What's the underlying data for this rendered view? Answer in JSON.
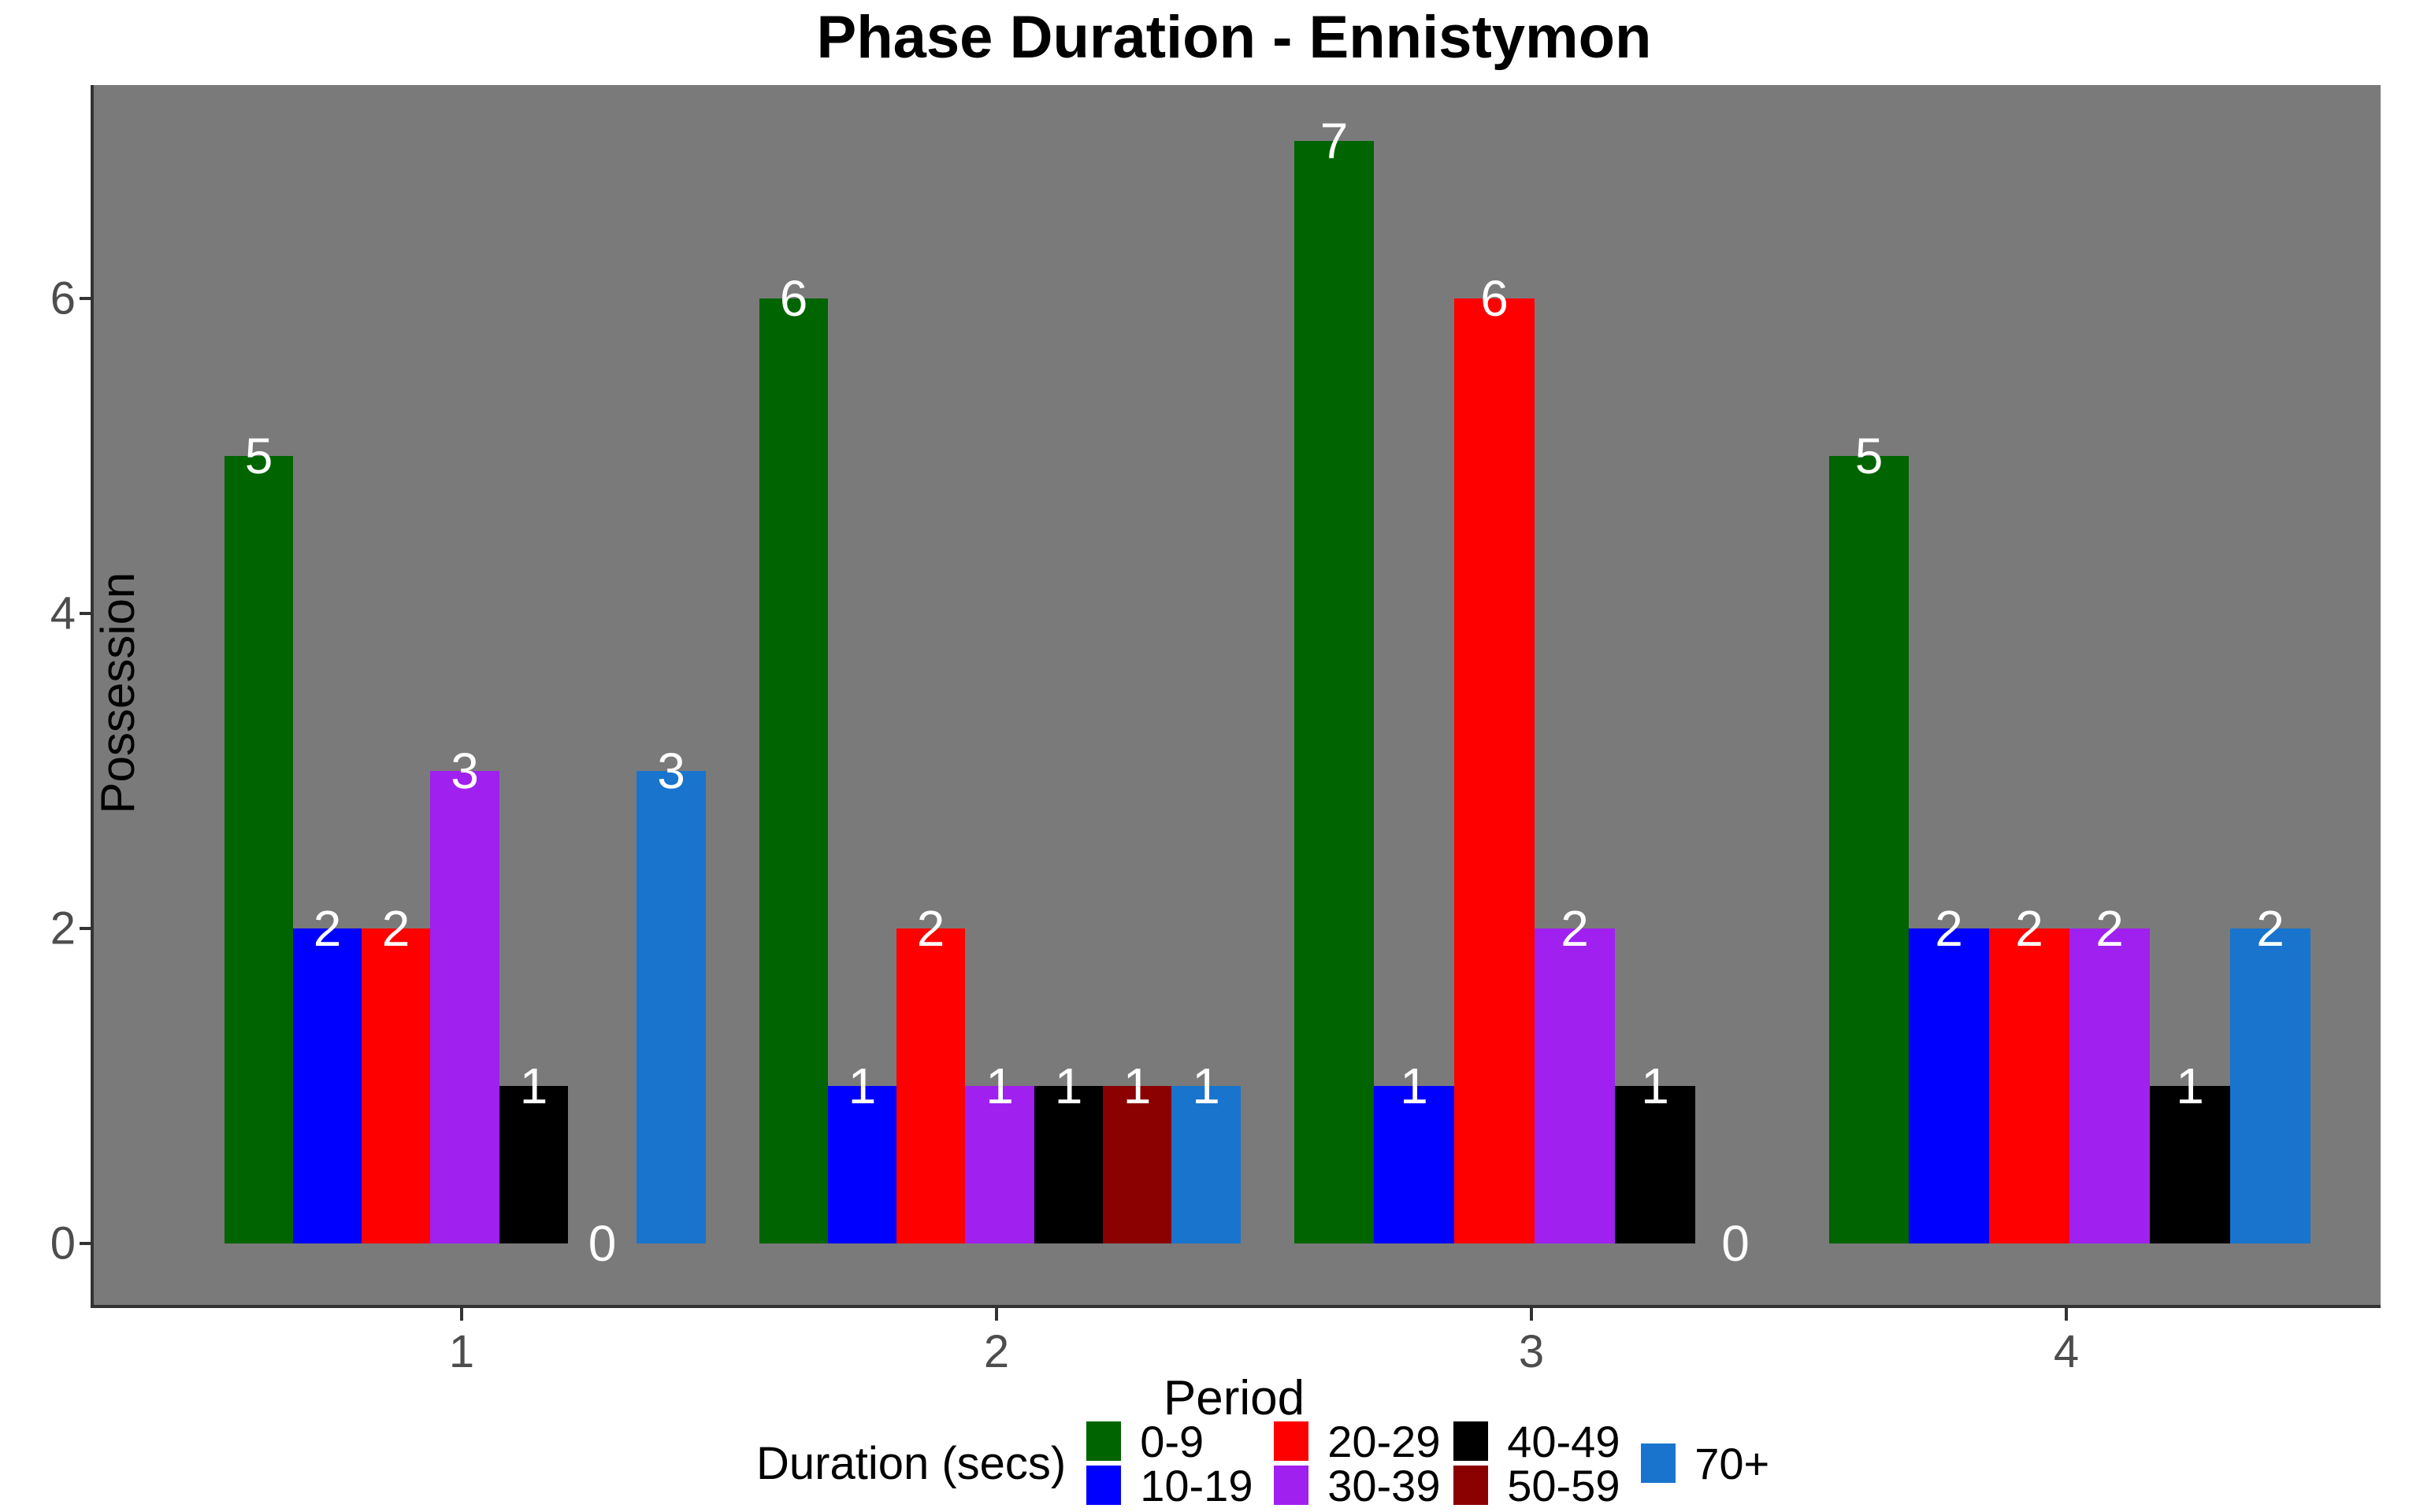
{
  "title": "Phase Duration - Ennistymon",
  "y_axis": {
    "label": "Possession",
    "ticks": [
      0,
      2,
      4,
      6
    ]
  },
  "x_axis": {
    "label": "Period",
    "ticks": [
      "1",
      "2",
      "3",
      "4"
    ]
  },
  "legend": {
    "title": "Duration (secs)"
  },
  "colors": {
    "panel_background": "#7a7a7a",
    "axis_text": "#4d4d4d",
    "axis_line": "#333333",
    "bar_value_label": "#ffffff",
    "title_text": "#000000"
  },
  "chart_data": {
    "type": "bar",
    "title": "Phase Duration - Ennistymon",
    "xlabel": "Period",
    "ylabel": "Possession",
    "categories": [
      "1",
      "2",
      "3",
      "4"
    ],
    "series": [
      {
        "name": "0-9",
        "color": "#006400",
        "values": [
          5,
          6,
          7,
          5
        ]
      },
      {
        "name": "10-19",
        "color": "#0000FF",
        "values": [
          2,
          1,
          1,
          2
        ]
      },
      {
        "name": "20-29",
        "color": "#FF0000",
        "values": [
          2,
          2,
          6,
          2
        ]
      },
      {
        "name": "30-39",
        "color": "#A020F0",
        "values": [
          3,
          1,
          2,
          2
        ]
      },
      {
        "name": "40-49",
        "color": "#000000",
        "values": [
          1,
          1,
          1,
          1
        ]
      },
      {
        "name": "50-59",
        "color": "#8B0000",
        "values": [
          0,
          1,
          0,
          null
        ]
      },
      {
        "name": "70+",
        "color": "#1874CD",
        "values": [
          3,
          1,
          null,
          2
        ]
      }
    ],
    "ylim": [
      0,
      7
    ],
    "yticks": [
      0,
      2,
      4,
      6
    ],
    "grid": false,
    "bar_value_labels": true,
    "zero_values_shown_as_label": true,
    "legend_position": "bottom",
    "legend_title": "Duration (secs)",
    "panel_background": "#7a7a7a"
  }
}
